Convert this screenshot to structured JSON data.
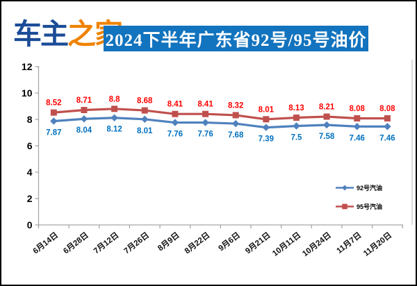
{
  "header": {
    "logo": {
      "text_primary": "车主",
      "text_secondary": "之家",
      "primary_color": "#1B4C97",
      "secondary_color": "#F08200"
    },
    "title": "2024下半年广东省92号/95号油价",
    "bar_color": "#1273BE",
    "title_color": "#FFFFFF"
  },
  "chart_data": {
    "type": "line",
    "title": "2024下半年广东省92号/95号油价",
    "categories": [
      "6月14日",
      "6月28日",
      "7月12日",
      "7月26日",
      "8月9日",
      "8月22日",
      "9月6日",
      "9月21日",
      "10月11日",
      "10月24日",
      "11月7日",
      "11月20日"
    ],
    "series": [
      {
        "name": "92号汽油",
        "marker": "diamond",
        "line_color": "#4F81BD",
        "label_color": "#0070C0",
        "label_position": "below",
        "values": [
          7.87,
          8.04,
          8.12,
          8.01,
          7.76,
          7.76,
          7.68,
          7.39,
          7.5,
          7.58,
          7.46,
          7.46
        ]
      },
      {
        "name": "95号汽油",
        "marker": "square",
        "line_color": "#C0504D",
        "label_color": "#FF0000",
        "label_position": "above",
        "values": [
          8.52,
          8.71,
          8.8,
          8.68,
          8.41,
          8.41,
          8.32,
          8.01,
          8.13,
          8.21,
          8.08,
          8.08
        ]
      }
    ],
    "ylim": [
      0,
      12
    ],
    "yticks": [
      0,
      2,
      4,
      6,
      8,
      10,
      12
    ],
    "grid": false,
    "legend_position": "right-middle",
    "axis_color": "#A6A6A6",
    "plot_border_color": "#C9C9C9",
    "tick_label_color": "#000000"
  }
}
